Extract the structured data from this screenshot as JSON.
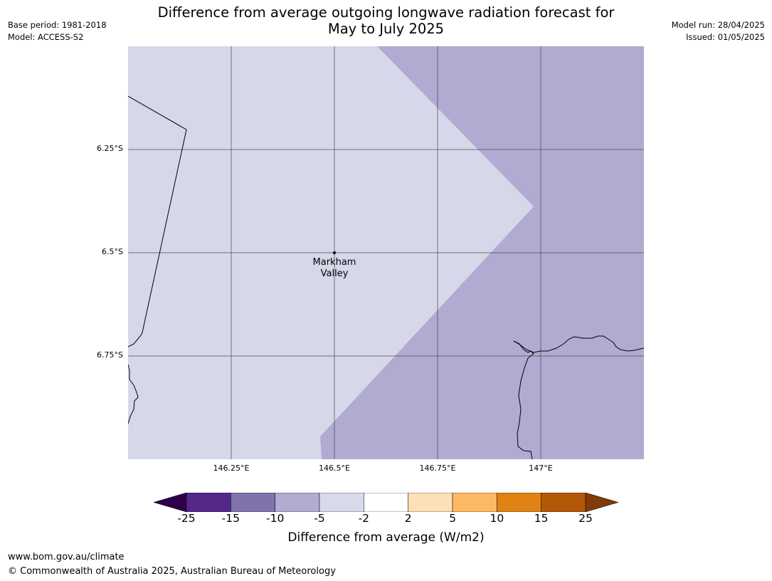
{
  "header": {
    "base_period": "Base period: 1981-2018",
    "model": "Model: ACCESS-S2",
    "model_run": "Model run: 28/04/2025",
    "issued": "Issued: 01/05/2025",
    "title_line1": "Difference from average outgoing longwave radiation forecast for",
    "title_line2": "May to July 2025"
  },
  "map": {
    "place_label_line1": "Markham",
    "place_label_line2": "Valley",
    "lat_labels": [
      "6.25°S",
      "6.5°S",
      "6.75°S"
    ],
    "lon_labels": [
      "146.25°E",
      "146.5°E",
      "146.75°E",
      "147°E"
    ],
    "regions": [
      {
        "category": "-5 to -2",
        "color": "#d7d7ea"
      },
      {
        "category": "-10 to -5",
        "color": "#b1abd2"
      }
    ]
  },
  "colorbar": {
    "label": "Difference from average (W/m2)",
    "ticks": [
      "-25",
      "-15",
      "-10",
      "-5",
      "-2",
      "2",
      "5",
      "10",
      "15",
      "25"
    ],
    "colors": [
      "#2d004b",
      "#542788",
      "#8073ac",
      "#b2abd2",
      "#d8daeb",
      "#ffffff",
      "#fee0b6",
      "#fdb863",
      "#e08214",
      "#b35806",
      "#7f3b08"
    ]
  },
  "footer": {
    "url": "www.bom.gov.au/climate",
    "copyright": "© Commonwealth of Australia 2025, Australian Bureau of Meteorology"
  }
}
